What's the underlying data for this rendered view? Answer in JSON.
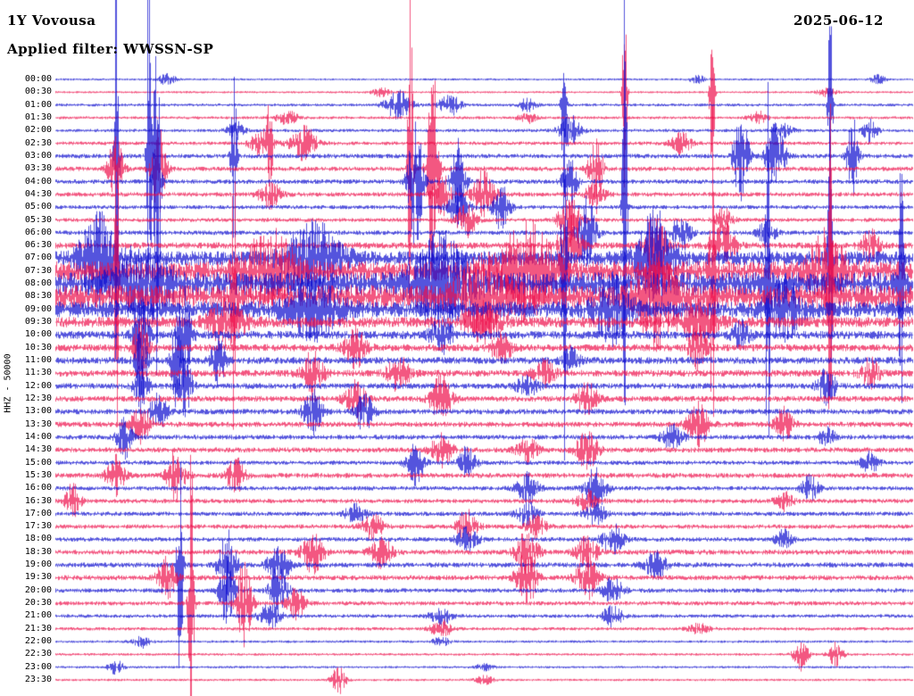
{
  "header": {
    "station": "1Y Vovousa",
    "date": "2025-06-12",
    "filter_label": "Applied filter: WWSSN-SP"
  },
  "axis": {
    "left_label": "HHZ - 50000"
  },
  "colors": {
    "background": "#ffffff",
    "text": "#000000",
    "trace_blue": "#0a0ace",
    "trace_red": "#ee0f4a"
  },
  "chart_data": {
    "type": "line",
    "subtype": "helicorder",
    "title": "1Y Vovousa",
    "date": "2025-06-12",
    "filter": "WWSSN-SP",
    "channel_scale": "HHZ - 50000",
    "row_minutes": 30,
    "legend": "alternating blue/red rows, one row per 30 minutes, 00:00 to 23:30",
    "rows": [
      {
        "label": "00:00",
        "color": "blue",
        "noise": 1.2,
        "events": [
          [
            0.13,
            6,
            0.01
          ],
          [
            0.75,
            4,
            0.01
          ],
          [
            0.96,
            5,
            0.008
          ]
        ]
      },
      {
        "label": "00:30",
        "color": "red",
        "noise": 1.2,
        "events": [
          [
            0.38,
            5,
            0.01
          ],
          [
            0.664,
            130,
            0.0025
          ],
          [
            0.766,
            140,
            0.0025
          ],
          [
            0.9,
            5,
            0.01
          ]
        ]
      },
      {
        "label": "01:00",
        "color": "blue",
        "noise": 1.6,
        "events": [
          [
            0.4,
            16,
            0.015
          ],
          [
            0.46,
            12,
            0.012
          ],
          [
            0.55,
            8,
            0.01
          ],
          [
            0.593,
            140,
            0.0025
          ],
          [
            0.904,
            150,
            0.0025
          ]
        ]
      },
      {
        "label": "01:30",
        "color": "red",
        "noise": 1.6,
        "events": [
          [
            0.27,
            8,
            0.012
          ],
          [
            0.55,
            6,
            0.01
          ],
          [
            0.82,
            7,
            0.01
          ]
        ]
      },
      {
        "label": "02:00",
        "color": "blue",
        "noise": 1.8,
        "events": [
          [
            0.21,
            10,
            0.01
          ],
          [
            0.6,
            18,
            0.012
          ],
          [
            0.85,
            8,
            0.01
          ],
          [
            0.95,
            14,
            0.008
          ]
        ]
      },
      {
        "label": "02:30",
        "color": "red",
        "noise": 2.0,
        "events": [
          [
            0.24,
            16,
            0.012
          ],
          [
            0.29,
            20,
            0.015
          ],
          [
            0.25,
            60,
            0.003
          ],
          [
            0.73,
            12,
            0.012
          ]
        ]
      },
      {
        "label": "03:00",
        "color": "blue",
        "noise": 2.5,
        "events": [
          [
            0.071,
            330,
            0.0025
          ],
          [
            0.109,
            300,
            0.0025
          ],
          [
            0.208,
            130,
            0.003
          ],
          [
            0.8,
            60,
            0.008
          ],
          [
            0.84,
            40,
            0.01
          ],
          [
            0.93,
            50,
            0.006
          ]
        ]
      },
      {
        "label": "03:30",
        "color": "red",
        "noise": 2.5,
        "events": [
          [
            0.07,
            40,
            0.008
          ],
          [
            0.12,
            50,
            0.008
          ],
          [
            0.414,
            280,
            0.0028
          ],
          [
            0.44,
            120,
            0.006
          ],
          [
            0.63,
            40,
            0.008
          ]
        ]
      },
      {
        "label": "04:00",
        "color": "blue",
        "noise": 2.5,
        "events": [
          [
            0.118,
            220,
            0.004
          ],
          [
            0.42,
            80,
            0.008
          ],
          [
            0.47,
            50,
            0.008
          ],
          [
            0.6,
            30,
            0.008
          ]
        ]
      },
      {
        "label": "04:30",
        "color": "red",
        "noise": 2.5,
        "events": [
          [
            0.25,
            15,
            0.012
          ],
          [
            0.45,
            25,
            0.01
          ],
          [
            0.5,
            30,
            0.012
          ],
          [
            0.63,
            20,
            0.01
          ]
        ]
      },
      {
        "label": "05:00",
        "color": "blue",
        "noise": 2.2,
        "events": [
          [
            0.47,
            30,
            0.01
          ],
          [
            0.52,
            25,
            0.01
          ],
          [
            0.664,
            320,
            0.0025
          ]
        ]
      },
      {
        "label": "05:30",
        "color": "red",
        "noise": 2.2,
        "events": [
          [
            0.48,
            20,
            0.012
          ],
          [
            0.6,
            28,
            0.012
          ],
          [
            0.78,
            14,
            0.01
          ]
        ]
      },
      {
        "label": "06:00",
        "color": "blue",
        "noise": 2.5,
        "events": [
          [
            0.62,
            40,
            0.01
          ],
          [
            0.73,
            22,
            0.01
          ],
          [
            0.83,
            14,
            0.01
          ]
        ]
      },
      {
        "label": "06:30",
        "color": "red",
        "noise": 3.5,
        "events": [
          [
            0.6,
            45,
            0.012
          ],
          [
            0.7,
            35,
            0.012
          ],
          [
            0.78,
            25,
            0.012
          ],
          [
            0.95,
            20,
            0.01
          ]
        ]
      },
      {
        "label": "07:00",
        "color": "blue",
        "noise": 8,
        "events": [
          [
            0.05,
            50,
            0.02
          ],
          [
            0.3,
            40,
            0.03
          ],
          [
            0.593,
            240,
            0.0028
          ],
          [
            0.7,
            50,
            0.02
          ],
          [
            0.904,
            190,
            0.0028
          ]
        ]
      },
      {
        "label": "07:30",
        "color": "red",
        "noise": 11,
        "events": [
          [
            0.071,
            190,
            0.0028
          ],
          [
            0.25,
            40,
            0.03
          ],
          [
            0.55,
            50,
            0.03
          ],
          [
            0.766,
            260,
            0.0028
          ],
          [
            0.9,
            40,
            0.02
          ]
        ]
      },
      {
        "label": "08:00",
        "color": "blue",
        "noise": 13,
        "events": [
          [
            0.1,
            40,
            0.03
          ],
          [
            0.45,
            50,
            0.03
          ],
          [
            0.831,
            240,
            0.0028
          ],
          [
            0.987,
            170,
            0.0028
          ]
        ]
      },
      {
        "label": "08:30",
        "color": "red",
        "noise": 13,
        "events": [
          [
            0.208,
            150,
            0.0028
          ],
          [
            0.5,
            40,
            0.03
          ],
          [
            0.7,
            50,
            0.02
          ],
          [
            0.904,
            210,
            0.0028
          ]
        ]
      },
      {
        "label": "09:00",
        "color": "blue",
        "noise": 9,
        "events": [
          [
            0.3,
            30,
            0.03
          ],
          [
            0.65,
            35,
            0.02
          ],
          [
            0.85,
            30,
            0.02
          ]
        ]
      },
      {
        "label": "09:30",
        "color": "red",
        "noise": 6,
        "events": [
          [
            0.2,
            25,
            0.02
          ],
          [
            0.5,
            20,
            0.02
          ],
          [
            0.75,
            25,
            0.02
          ]
        ]
      },
      {
        "label": "10:00",
        "color": "blue",
        "noise": 4.5,
        "events": [
          [
            0.1,
            45,
            0.008
          ],
          [
            0.15,
            55,
            0.008
          ],
          [
            0.45,
            20,
            0.012
          ],
          [
            0.8,
            15,
            0.01
          ]
        ]
      },
      {
        "label": "10:30",
        "color": "red",
        "noise": 4,
        "events": [
          [
            0.1,
            35,
            0.008
          ],
          [
            0.35,
            22,
            0.012
          ],
          [
            0.52,
            16,
            0.012
          ],
          [
            0.75,
            25,
            0.01
          ]
        ]
      },
      {
        "label": "11:00",
        "color": "blue",
        "noise": 3.8,
        "events": [
          [
            0.1,
            60,
            0.006
          ],
          [
            0.14,
            50,
            0.006
          ],
          [
            0.19,
            30,
            0.008
          ],
          [
            0.6,
            15,
            0.01
          ]
        ]
      },
      {
        "label": "11:30",
        "color": "red",
        "noise": 3.8,
        "events": [
          [
            0.3,
            25,
            0.012
          ],
          [
            0.4,
            20,
            0.012
          ],
          [
            0.57,
            15,
            0.012
          ],
          [
            0.95,
            18,
            0.01
          ]
        ]
      },
      {
        "label": "12:00",
        "color": "blue",
        "noise": 3.2,
        "events": [
          [
            0.1,
            30,
            0.008
          ],
          [
            0.15,
            38,
            0.008
          ],
          [
            0.55,
            12,
            0.012
          ],
          [
            0.9,
            20,
            0.01
          ]
        ]
      },
      {
        "label": "12:30",
        "color": "red",
        "noise": 3.2,
        "events": [
          [
            0.35,
            20,
            0.012
          ],
          [
            0.45,
            26,
            0.012
          ],
          [
            0.62,
            18,
            0.012
          ]
        ]
      },
      {
        "label": "13:00",
        "color": "blue",
        "noise": 3,
        "events": [
          [
            0.12,
            20,
            0.01
          ],
          [
            0.3,
            28,
            0.01
          ],
          [
            0.36,
            24,
            0.01
          ]
        ]
      },
      {
        "label": "13:30",
        "color": "red",
        "noise": 3,
        "events": [
          [
            0.1,
            20,
            0.012
          ],
          [
            0.75,
            24,
            0.012
          ],
          [
            0.85,
            18,
            0.01
          ]
        ]
      },
      {
        "label": "14:00",
        "color": "blue",
        "noise": 2.6,
        "events": [
          [
            0.08,
            28,
            0.008
          ],
          [
            0.72,
            14,
            0.012
          ],
          [
            0.9,
            10,
            0.01
          ]
        ]
      },
      {
        "label": "14:30",
        "color": "red",
        "noise": 2.8,
        "events": [
          [
            0.45,
            18,
            0.012
          ],
          [
            0.55,
            14,
            0.012
          ],
          [
            0.62,
            22,
            0.012
          ]
        ]
      },
      {
        "label": "15:00",
        "color": "blue",
        "noise": 2.4,
        "events": [
          [
            0.42,
            24,
            0.01
          ],
          [
            0.48,
            18,
            0.01
          ],
          [
            0.95,
            12,
            0.01
          ]
        ]
      },
      {
        "label": "15:30",
        "color": "red",
        "noise": 2.8,
        "events": [
          [
            0.07,
            22,
            0.01
          ],
          [
            0.14,
            28,
            0.01
          ],
          [
            0.21,
            22,
            0.01
          ]
        ]
      },
      {
        "label": "16:00",
        "color": "blue",
        "noise": 2.4,
        "events": [
          [
            0.55,
            18,
            0.012
          ],
          [
            0.63,
            24,
            0.012
          ],
          [
            0.88,
            14,
            0.01
          ]
        ]
      },
      {
        "label": "16:30",
        "color": "red",
        "noise": 2.4,
        "events": [
          [
            0.02,
            20,
            0.008
          ],
          [
            0.62,
            12,
            0.012
          ],
          [
            0.85,
            10,
            0.01
          ]
        ]
      },
      {
        "label": "17:00",
        "color": "blue",
        "noise": 2.4,
        "events": [
          [
            0.35,
            10,
            0.012
          ],
          [
            0.55,
            14,
            0.012
          ],
          [
            0.63,
            12,
            0.012
          ]
        ]
      },
      {
        "label": "17:30",
        "color": "red",
        "noise": 2.4,
        "events": [
          [
            0.37,
            14,
            0.012
          ],
          [
            0.48,
            18,
            0.012
          ],
          [
            0.56,
            12,
            0.012
          ]
        ]
      },
      {
        "label": "18:00",
        "color": "blue",
        "noise": 2.4,
        "events": [
          [
            0.48,
            14,
            0.012
          ],
          [
            0.65,
            18,
            0.012
          ],
          [
            0.85,
            10,
            0.01
          ]
        ]
      },
      {
        "label": "18:30",
        "color": "red",
        "noise": 2.8,
        "events": [
          [
            0.3,
            24,
            0.012
          ],
          [
            0.38,
            18,
            0.012
          ],
          [
            0.55,
            24,
            0.012
          ],
          [
            0.62,
            18,
            0.012
          ]
        ]
      },
      {
        "label": "19:00",
        "color": "blue",
        "noise": 2.8,
        "events": [
          [
            0.145,
            170,
            0.003
          ],
          [
            0.2,
            40,
            0.01
          ],
          [
            0.26,
            22,
            0.012
          ],
          [
            0.7,
            16,
            0.012
          ]
        ]
      },
      {
        "label": "19:30",
        "color": "red",
        "noise": 2.8,
        "events": [
          [
            0.13,
            26,
            0.01
          ],
          [
            0.55,
            30,
            0.012
          ],
          [
            0.62,
            24,
            0.012
          ]
        ]
      },
      {
        "label": "20:00",
        "color": "blue",
        "noise": 2.4,
        "events": [
          [
            0.2,
            45,
            0.008
          ],
          [
            0.26,
            28,
            0.01
          ],
          [
            0.65,
            14,
            0.012
          ]
        ]
      },
      {
        "label": "20:30",
        "color": "red",
        "noise": 2.4,
        "events": [
          [
            0.158,
            190,
            0.003
          ],
          [
            0.22,
            55,
            0.008
          ],
          [
            0.28,
            20,
            0.01
          ]
        ]
      },
      {
        "label": "21:00",
        "color": "blue",
        "noise": 2,
        "events": [
          [
            0.25,
            14,
            0.012
          ],
          [
            0.45,
            10,
            0.012
          ],
          [
            0.65,
            12,
            0.012
          ]
        ]
      },
      {
        "label": "21:30",
        "color": "red",
        "noise": 1.8,
        "events": [
          [
            0.45,
            10,
            0.012
          ],
          [
            0.75,
            6,
            0.012
          ]
        ]
      },
      {
        "label": "22:00",
        "color": "blue",
        "noise": 1.4,
        "events": [
          [
            0.1,
            7,
            0.01
          ],
          [
            0.45,
            5,
            0.01
          ]
        ]
      },
      {
        "label": "22:30",
        "color": "red",
        "noise": 1.4,
        "events": [
          [
            0.87,
            20,
            0.008
          ],
          [
            0.91,
            14,
            0.008
          ]
        ]
      },
      {
        "label": "23:00",
        "color": "blue",
        "noise": 1.3,
        "events": [
          [
            0.07,
            9,
            0.008
          ],
          [
            0.5,
            4,
            0.01
          ]
        ]
      },
      {
        "label": "23:30",
        "color": "red",
        "noise": 1.3,
        "events": [
          [
            0.33,
            16,
            0.008
          ],
          [
            0.5,
            5,
            0.01
          ]
        ]
      }
    ]
  }
}
